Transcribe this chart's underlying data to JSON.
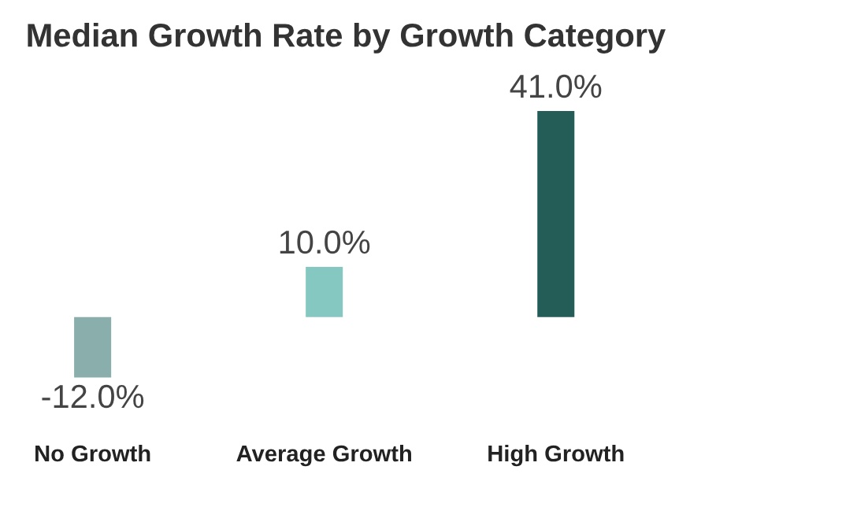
{
  "chart_data": {
    "type": "bar",
    "title": "Median Growth Rate by Growth Category",
    "categories": [
      "No Growth",
      "Average Growth",
      "High Growth"
    ],
    "values": [
      -12.0,
      10.0,
      41.0
    ],
    "colors": [
      "#8aaeab",
      "#85c8c2",
      "#245d58"
    ],
    "value_labels": [
      "-12.0%",
      "10.0%",
      "41.0%"
    ],
    "grid": false,
    "legend": false
  }
}
